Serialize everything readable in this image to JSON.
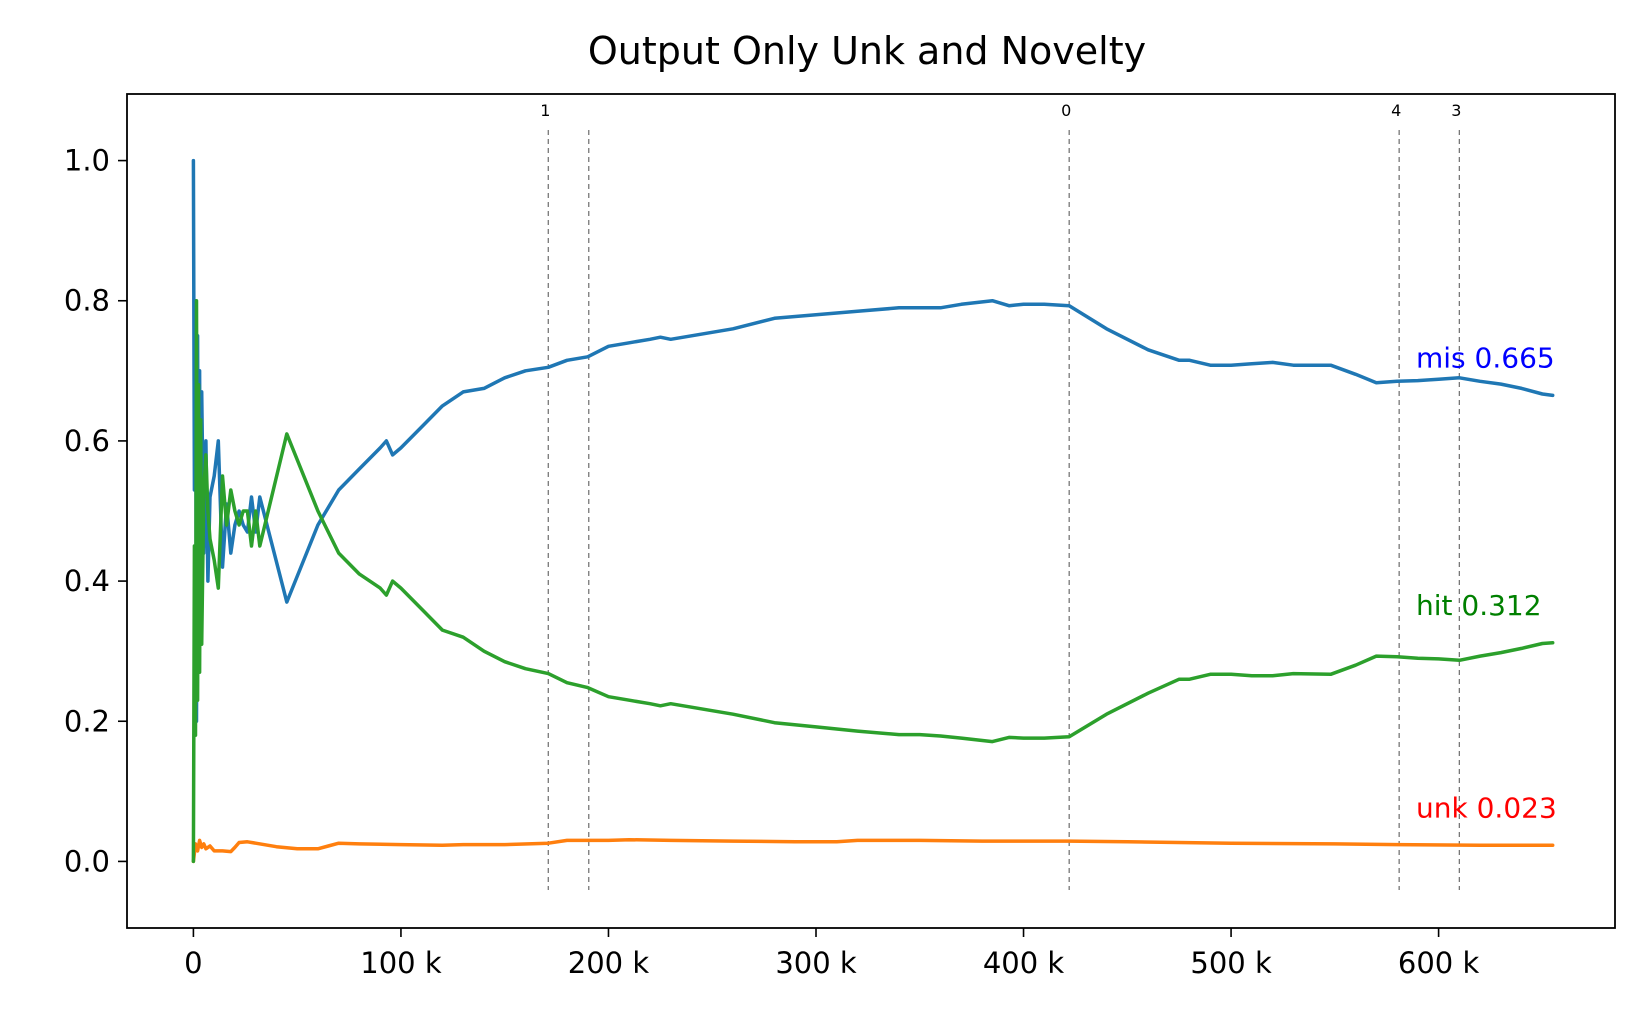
{
  "chart_data": {
    "type": "line",
    "title": "Output Only Unk and Novelty",
    "xlabel": "",
    "ylabel": "",
    "xlim": [
      -32000,
      685000
    ],
    "ylim": [
      -0.095,
      1.095
    ],
    "grid": false,
    "x_ticks": [
      {
        "value": 0,
        "label": "0"
      },
      {
        "value": 100000,
        "label": "100 k"
      },
      {
        "value": 200000,
        "label": "200 k"
      },
      {
        "value": 300000,
        "label": "300 k"
      },
      {
        "value": 400000,
        "label": "400 k"
      },
      {
        "value": 500000,
        "label": "500 k"
      },
      {
        "value": 600000,
        "label": "600 k"
      }
    ],
    "y_ticks": [
      {
        "value": 0.0,
        "label": "0.0"
      },
      {
        "value": 0.2,
        "label": "0.2"
      },
      {
        "value": 0.4,
        "label": "0.4"
      },
      {
        "value": 0.6,
        "label": "0.6"
      },
      {
        "value": 0.8,
        "label": "0.8"
      },
      {
        "value": 1.0,
        "label": "1.0"
      }
    ],
    "vertical_lines": [
      {
        "x": 171000,
        "label": "1"
      },
      {
        "x": 190500,
        "label": ""
      },
      {
        "x": 422000,
        "label": "0"
      },
      {
        "x": 581000,
        "label": "4"
      },
      {
        "x": 610000,
        "label": "3"
      }
    ],
    "series": [
      {
        "name": "mis",
        "color": "#1f77b4",
        "label_color": "#0000ff",
        "end_label": "mis 0.665",
        "x": [
          0,
          500,
          1000,
          1500,
          2000,
          2500,
          3000,
          3500,
          4000,
          5000,
          6000,
          7000,
          8000,
          10000,
          12000,
          14000,
          16000,
          18000,
          20000,
          22000,
          24000,
          26000,
          28000,
          30000,
          32000,
          45000,
          60000,
          70000,
          80000,
          90000,
          93000,
          96000,
          100000,
          110000,
          120000,
          130000,
          140000,
          150000,
          160000,
          171000,
          180000,
          190000,
          200000,
          210000,
          220000,
          225000,
          230000,
          240000,
          250000,
          260000,
          280000,
          300000,
          320000,
          340000,
          350000,
          360000,
          370000,
          385000,
          393000,
          400000,
          410000,
          422000,
          440000,
          460000,
          475000,
          480000,
          490000,
          500000,
          510000,
          520000,
          530000,
          548000,
          560000,
          570000,
          580000,
          590000,
          600000,
          610000,
          620000,
          630000,
          640000,
          650000,
          655000
        ],
        "y": [
          1.0,
          0.53,
          0.8,
          0.2,
          0.75,
          0.29,
          0.7,
          0.35,
          0.67,
          0.44,
          0.6,
          0.4,
          0.52,
          0.55,
          0.6,
          0.42,
          0.51,
          0.44,
          0.48,
          0.5,
          0.48,
          0.47,
          0.52,
          0.47,
          0.52,
          0.37,
          0.48,
          0.53,
          0.56,
          0.59,
          0.6,
          0.58,
          0.59,
          0.62,
          0.65,
          0.67,
          0.675,
          0.69,
          0.7,
          0.705,
          0.715,
          0.72,
          0.735,
          0.74,
          0.745,
          0.748,
          0.745,
          0.75,
          0.755,
          0.76,
          0.775,
          0.78,
          0.785,
          0.79,
          0.79,
          0.79,
          0.795,
          0.8,
          0.793,
          0.795,
          0.795,
          0.793,
          0.76,
          0.73,
          0.715,
          0.715,
          0.708,
          0.708,
          0.71,
          0.712,
          0.708,
          0.708,
          0.695,
          0.683,
          0.685,
          0.686,
          0.688,
          0.69,
          0.685,
          0.681,
          0.675,
          0.667,
          0.665
        ]
      },
      {
        "name": "unk",
        "color": "#ff7f0e",
        "label_color": "#ff0000",
        "end_label": "unk 0.023",
        "x": [
          0,
          1000,
          2000,
          3000,
          4000,
          5000,
          6000,
          8000,
          10000,
          14000,
          18000,
          20000,
          22000,
          26000,
          30000,
          40000,
          50000,
          60000,
          65000,
          70000,
          80000,
          100000,
          120000,
          130000,
          150000,
          171000,
          180000,
          190000,
          200000,
          210000,
          230000,
          260000,
          290000,
          310000,
          320000,
          350000,
          380000,
          400000,
          422000,
          450000,
          500000,
          550000,
          580000,
          620000,
          655000
        ],
        "y": [
          0.0,
          0.025,
          0.015,
          0.03,
          0.02,
          0.025,
          0.018,
          0.022,
          0.015,
          0.015,
          0.014,
          0.02,
          0.027,
          0.028,
          0.026,
          0.021,
          0.018,
          0.018,
          0.022,
          0.026,
          0.025,
          0.024,
          0.023,
          0.024,
          0.024,
          0.026,
          0.03,
          0.03,
          0.03,
          0.031,
          0.03,
          0.029,
          0.028,
          0.028,
          0.03,
          0.03,
          0.029,
          0.029,
          0.029,
          0.028,
          0.026,
          0.025,
          0.024,
          0.023,
          0.023
        ]
      },
      {
        "name": "hit",
        "color": "#2ca02c",
        "label_color": "#008000",
        "end_label": "hit 0.312",
        "x": [
          0,
          500,
          1000,
          1500,
          2000,
          2500,
          3000,
          3500,
          4000,
          5000,
          6000,
          7000,
          8000,
          10000,
          12000,
          14000,
          16000,
          18000,
          20000,
          22000,
          24000,
          26000,
          28000,
          30000,
          32000,
          45000,
          60000,
          70000,
          80000,
          90000,
          93000,
          96000,
          100000,
          110000,
          120000,
          130000,
          140000,
          150000,
          160000,
          171000,
          180000,
          190000,
          200000,
          210000,
          220000,
          225000,
          230000,
          240000,
          250000,
          260000,
          280000,
          300000,
          320000,
          340000,
          350000,
          360000,
          370000,
          385000,
          393000,
          400000,
          410000,
          422000,
          440000,
          460000,
          475000,
          480000,
          490000,
          500000,
          510000,
          520000,
          530000,
          548000,
          560000,
          570000,
          580000,
          590000,
          600000,
          610000,
          620000,
          630000,
          640000,
          650000,
          655000
        ],
        "y": [
          0.0,
          0.45,
          0.18,
          0.8,
          0.23,
          0.68,
          0.27,
          0.63,
          0.31,
          0.53,
          0.58,
          0.5,
          0.46,
          0.43,
          0.39,
          0.55,
          0.48,
          0.53,
          0.5,
          0.48,
          0.5,
          0.5,
          0.45,
          0.5,
          0.45,
          0.61,
          0.5,
          0.44,
          0.41,
          0.39,
          0.38,
          0.4,
          0.39,
          0.36,
          0.33,
          0.32,
          0.3,
          0.285,
          0.275,
          0.268,
          0.255,
          0.248,
          0.235,
          0.23,
          0.225,
          0.222,
          0.225,
          0.22,
          0.215,
          0.21,
          0.198,
          0.192,
          0.186,
          0.181,
          0.181,
          0.179,
          0.176,
          0.171,
          0.177,
          0.176,
          0.176,
          0.178,
          0.21,
          0.24,
          0.26,
          0.26,
          0.267,
          0.267,
          0.265,
          0.265,
          0.268,
          0.267,
          0.28,
          0.293,
          0.292,
          0.29,
          0.289,
          0.287,
          0.293,
          0.298,
          0.304,
          0.311,
          0.312
        ]
      }
    ]
  }
}
